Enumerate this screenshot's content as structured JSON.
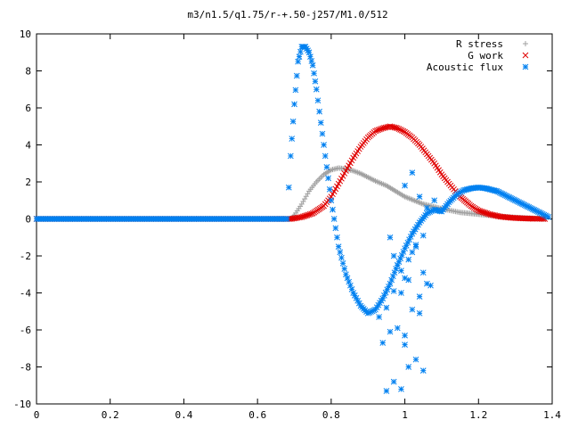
{
  "chart_data": {
    "type": "scatter",
    "title": "m3/n1.5/q1.75/r-+.50-j257/M1.0/512",
    "xlabel": "",
    "ylabel": "",
    "xlim": [
      0,
      1.4
    ],
    "ylim": [
      -10,
      10
    ],
    "x_ticks": [
      "0",
      "0.2",
      "0.4",
      "0.6",
      "0.8",
      "1",
      "1.2",
      "1.4"
    ],
    "y_ticks": [
      "10",
      "8",
      "6",
      "4",
      "2",
      "0",
      "-2",
      "-4",
      "-6",
      "-8",
      "-10"
    ],
    "grid": false,
    "legend_position": "top-right",
    "series": [
      {
        "name": "R stress",
        "marker": "plus",
        "color": "#a0a0a0",
        "x": [
          0.0,
          0.1,
          0.2,
          0.3,
          0.4,
          0.5,
          0.6,
          0.69,
          0.7,
          0.72,
          0.74,
          0.76,
          0.78,
          0.8,
          0.82,
          0.84,
          0.86,
          0.88,
          0.9,
          0.92,
          0.95,
          1.0,
          1.05,
          1.1,
          1.15,
          1.2,
          1.25,
          1.3,
          1.35,
          1.38
        ],
        "y": [
          0,
          0,
          0,
          0,
          0,
          0,
          0,
          0,
          0.2,
          0.8,
          1.5,
          2.0,
          2.4,
          2.65,
          2.75,
          2.7,
          2.6,
          2.45,
          2.25,
          2.05,
          1.8,
          1.2,
          0.8,
          0.55,
          0.35,
          0.25,
          0.15,
          0.08,
          0.03,
          0.0
        ]
      },
      {
        "name": "G work",
        "marker": "cross",
        "color": "#e00000",
        "x": [
          0.0,
          0.1,
          0.2,
          0.3,
          0.4,
          0.5,
          0.6,
          0.69,
          0.72,
          0.75,
          0.78,
          0.8,
          0.82,
          0.84,
          0.86,
          0.88,
          0.9,
          0.92,
          0.94,
          0.96,
          0.98,
          1.0,
          1.02,
          1.04,
          1.06,
          1.08,
          1.1,
          1.12,
          1.15,
          1.18,
          1.2,
          1.23,
          1.26,
          1.29,
          1.32,
          1.35,
          1.38
        ],
        "y": [
          0,
          0,
          0,
          0,
          0,
          0,
          0,
          0,
          0.1,
          0.3,
          0.7,
          1.2,
          1.9,
          2.6,
          3.3,
          3.9,
          4.4,
          4.75,
          4.9,
          5.0,
          4.9,
          4.7,
          4.4,
          4.0,
          3.5,
          3.0,
          2.4,
          1.9,
          1.2,
          0.7,
          0.45,
          0.25,
          0.12,
          0.06,
          0.03,
          0.01,
          0.0
        ]
      },
      {
        "name": "Acoustic flux",
        "marker": "star",
        "color": "#0080f0",
        "x": [
          0.0,
          0.1,
          0.2,
          0.3,
          0.4,
          0.5,
          0.6,
          0.68,
          0.69,
          0.7,
          0.71,
          0.72,
          0.73,
          0.74,
          0.75,
          0.76,
          0.78,
          0.8,
          0.82,
          0.84,
          0.86,
          0.88,
          0.9,
          0.92,
          0.94,
          0.96,
          0.98,
          1.0,
          1.02,
          1.04,
          1.06,
          1.08,
          1.1,
          1.12,
          1.14,
          1.16,
          1.18,
          1.2,
          1.22,
          1.25,
          1.28,
          1.31,
          1.34,
          1.37,
          1.39
        ],
        "y": [
          0,
          0,
          0,
          0,
          0,
          0,
          0,
          0,
          3.4,
          6.2,
          8.5,
          9.3,
          9.3,
          9.0,
          8.3,
          7.0,
          4.0,
          1.0,
          -1.5,
          -3.0,
          -4.0,
          -4.7,
          -5.1,
          -4.9,
          -4.3,
          -3.5,
          -2.5,
          -1.6,
          -0.8,
          -0.2,
          0.3,
          0.5,
          0.4,
          0.9,
          1.3,
          1.55,
          1.65,
          1.7,
          1.65,
          1.5,
          1.2,
          0.9,
          0.6,
          0.3,
          0.1
        ]
      }
    ],
    "scatter_extra": {
      "series": "Acoustic flux",
      "x": [
        0.95,
        0.97,
        0.99,
        1.01,
        1.03,
        1.05,
        0.94,
        0.96,
        0.98,
        1.0,
        1.02,
        1.04,
        1.06,
        0.93,
        0.95,
        0.97,
        0.99,
        1.01,
        1.03,
        1.05,
        0.96,
        0.98,
        1.0,
        1.02,
        0.97,
        0.99,
        1.01,
        1.03,
        1.05,
        1.07,
        1.0,
        1.02,
        1.04,
        1.06,
        1.08,
        1.0,
        1.04
      ],
      "y": [
        -9.3,
        -8.8,
        -9.2,
        -8.0,
        -7.6,
        -8.2,
        -6.7,
        -6.1,
        -5.9,
        -6.8,
        -4.9,
        -4.2,
        -3.5,
        -5.3,
        -4.8,
        -3.9,
        -2.8,
        -2.2,
        -1.5,
        -0.9,
        -1.0,
        -2.5,
        -3.2,
        -1.8,
        -2.0,
        -4.0,
        -3.3,
        -1.4,
        -2.9,
        -3.6,
        1.8,
        2.5,
        1.2,
        0.6,
        1.0,
        -6.3,
        -5.1
      ]
    }
  }
}
